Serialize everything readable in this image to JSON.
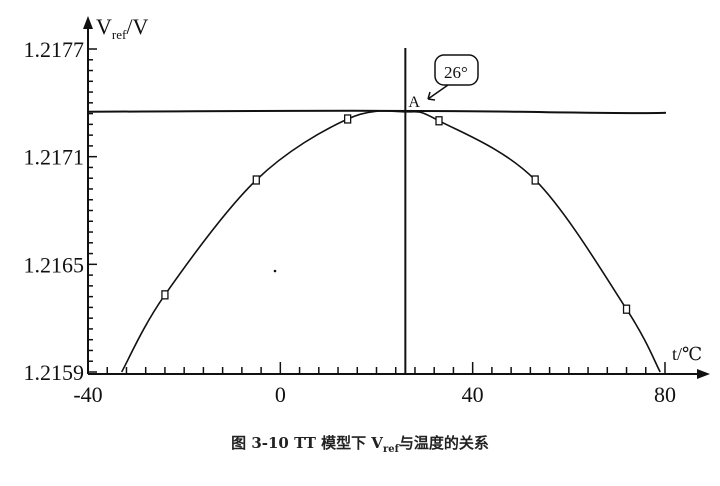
{
  "chart_data": {
    "type": "line",
    "xlabel": "t/℃",
    "ylabel_main": "V",
    "ylabel_sub": "ref",
    "ylabel_unit": "/V",
    "xlim": [
      -40,
      80
    ],
    "ylim": [
      1.2159,
      1.2177
    ],
    "x_ticks": [
      -40,
      0,
      40,
      80
    ],
    "x_tick_labels": [
      "-40",
      "0",
      "40",
      "80"
    ],
    "y_ticks": [
      1.2159,
      1.2165,
      1.2171,
      1.2177
    ],
    "y_tick_labels": [
      "1.2159",
      "1.2165",
      "1.2171",
      "1.2177"
    ],
    "grid": false,
    "series": [
      {
        "curve": [
          [
            -33,
            1.2159
          ],
          [
            -24,
            1.21633
          ],
          [
            -5,
            1.21697
          ],
          [
            14,
            1.21731
          ],
          [
            26,
            1.21735
          ],
          [
            33,
            1.2173
          ],
          [
            53,
            1.21697
          ],
          [
            72,
            1.21625
          ],
          [
            79,
            1.2159
          ]
        ],
        "markers": [
          [
            -24,
            1.21633
          ],
          [
            -5,
            1.21697
          ],
          [
            14,
            1.21731
          ],
          [
            33,
            1.2173
          ],
          [
            53,
            1.21697
          ],
          [
            72,
            1.21625
          ]
        ]
      }
    ],
    "reference_lines": {
      "horizontal_y": 1.21735,
      "vertical_x": 26
    },
    "annotations": {
      "point_label": "A",
      "callout": "26°"
    }
  },
  "caption": {
    "prefix": "图 3-10 TT 模型下 V",
    "sub": "ref",
    "suffix": "与温度的关系"
  },
  "colors": {
    "ink": "#111111",
    "background": "#ffffff"
  }
}
